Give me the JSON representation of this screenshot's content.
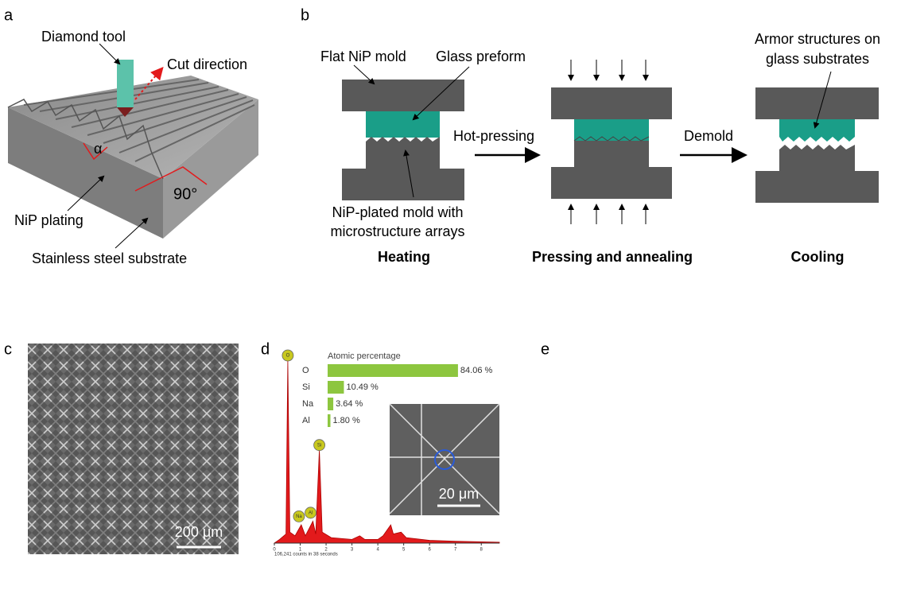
{
  "panel_a": {
    "label": "a",
    "diamond_tool": "Diamond tool",
    "cut_direction": "Cut direction",
    "alpha": "α",
    "right_angle": "90°",
    "nip_plating": "NiP plating",
    "substrate": "Stainless steel substrate"
  },
  "panel_b": {
    "label": "b",
    "flat_mold": "Flat NiP mold",
    "glass_preform": "Glass preform",
    "plated_mold": [
      "NiP-plated mold with",
      "microstructure arrays"
    ],
    "hot_pressing": "Hot-pressing",
    "demold": "Demold",
    "armor": [
      "Armor structures on",
      "glass substrates"
    ],
    "steps": [
      "Heating",
      "Pressing and annealing",
      "Cooling"
    ]
  },
  "panel_c": {
    "label": "c",
    "scale_bar": "200 μm"
  },
  "panel_d": {
    "label": "d",
    "inset_scale_bar": "20 μm"
  },
  "panel_e": {
    "label": "e"
  },
  "chart_data": [
    {
      "type": "bar",
      "orientation": "horizontal",
      "title": "Atomic percentage",
      "categories": [
        "O",
        "Si",
        "Na",
        "Al"
      ],
      "values": [
        84.06,
        10.49,
        3.64,
        1.8
      ],
      "value_labels": [
        "84.06 %",
        "10.49 %",
        "3.64 %",
        "1.80 %"
      ],
      "color": "#8dc63f",
      "xlim": [
        0,
        100
      ]
    },
    {
      "type": "area",
      "caption": "106,241 counts in 38 seconds",
      "x": [
        0,
        0.2,
        0.45,
        0.52,
        0.6,
        0.8,
        1.04,
        1.2,
        1.49,
        1.6,
        1.74,
        1.85,
        2.2,
        3.0,
        3.3,
        3.5,
        4.0,
        4.2,
        4.5,
        4.6,
        4.9,
        5.1,
        6.0,
        7.0,
        8.7
      ],
      "values": [
        0,
        2,
        5,
        100,
        6,
        4,
        10,
        4,
        12,
        5,
        51,
        6,
        3,
        2,
        4,
        2,
        2,
        4,
        10,
        5,
        6,
        3,
        1.5,
        1,
        0.5
      ],
      "color": "#e31a1c",
      "xlim": [
        0,
        8.7
      ],
      "ylim": [
        0,
        100
      ],
      "xticks": [
        0,
        1,
        2,
        3,
        4,
        5,
        6,
        7,
        8
      ],
      "annotations": [
        {
          "text": "O",
          "x": 0.52,
          "y": 100
        },
        {
          "text": "Na",
          "x": 0.95,
          "y": 12
        },
        {
          "text": "Al",
          "x": 1.4,
          "y": 14
        },
        {
          "text": "Si",
          "x": 1.74,
          "y": 51
        }
      ]
    }
  ]
}
